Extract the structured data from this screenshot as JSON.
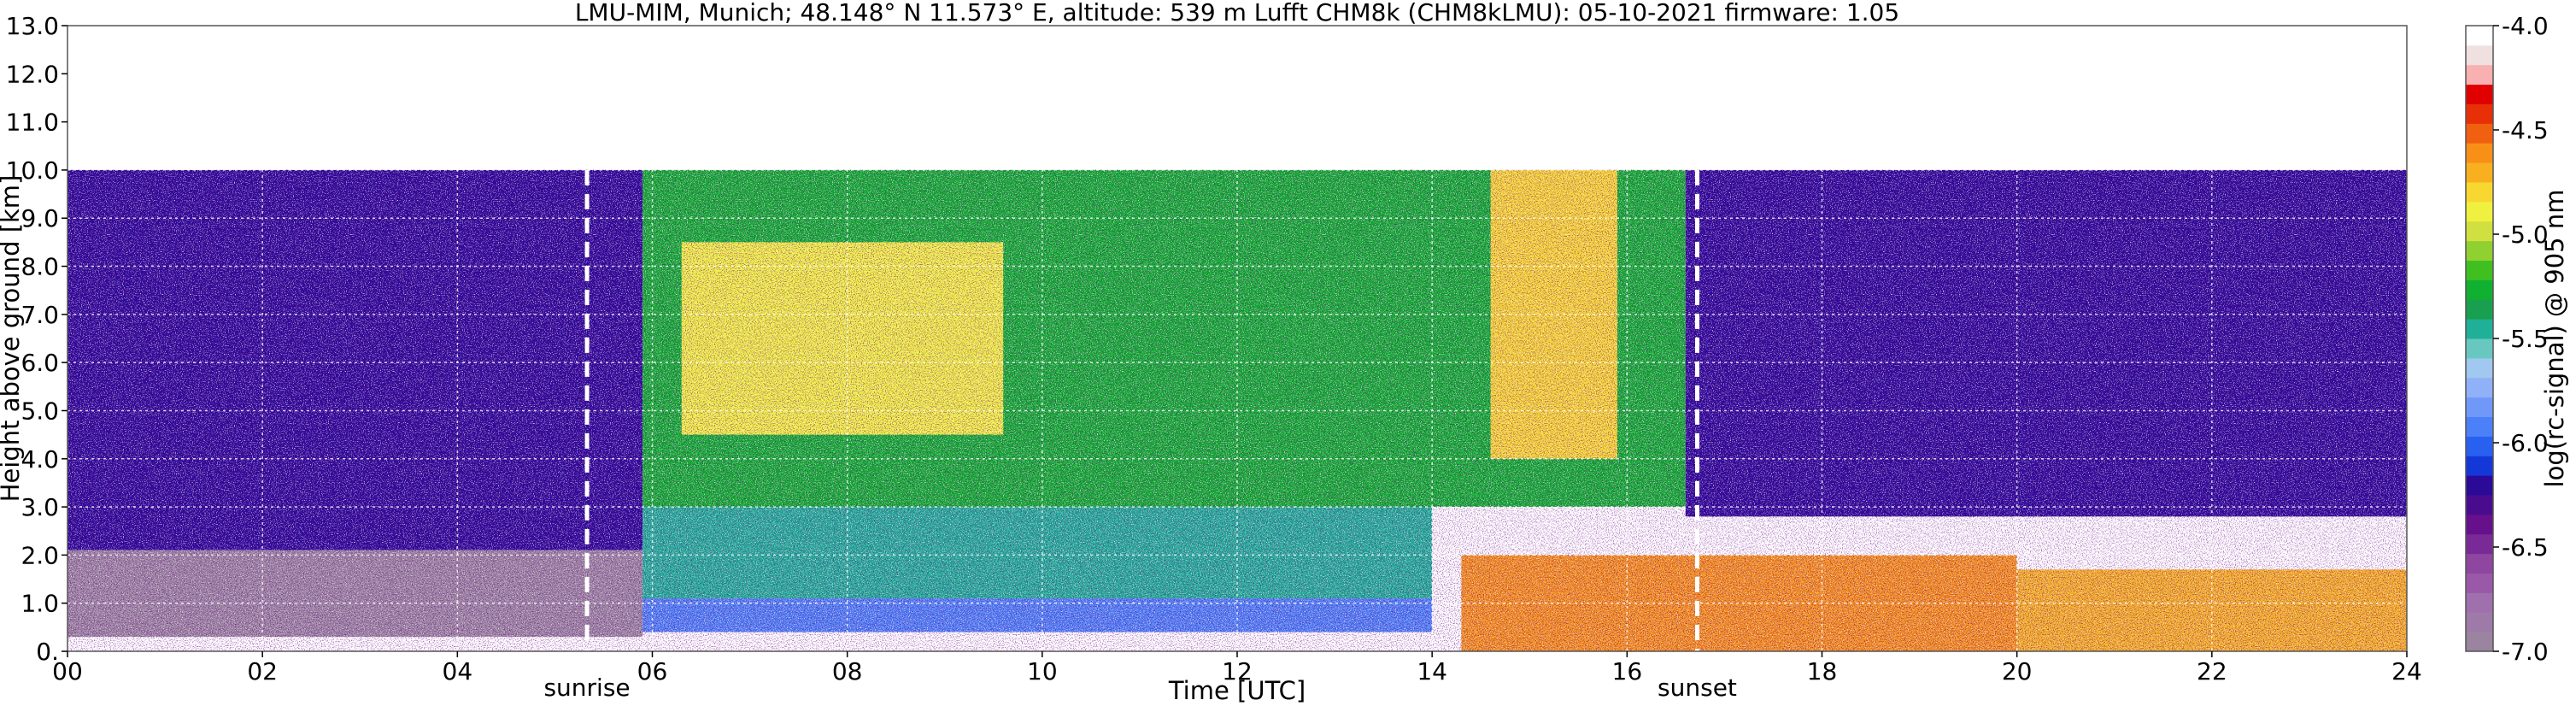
{
  "chart_data": {
    "type": "heatmap",
    "title": "LMU-MIM, Munich; 48.148° N 11.573° E, altitude: 539 m    Lufft CHM8k (CHM8kLMU): 05-10-2021    firmware: 1.05",
    "xlabel": "Time [UTC]",
    "ylabel": "Height above ground [km]",
    "colorbar_label": "log(rc-signal) @ 905 nm",
    "xlim": [
      0,
      24
    ],
    "ylim": [
      0,
      13
    ],
    "x_ticks": [
      0,
      2,
      4,
      6,
      8,
      10,
      12,
      14,
      16,
      18,
      20,
      22,
      24
    ],
    "x_tick_labels": [
      "00",
      "02",
      "04",
      "06",
      "08",
      "10",
      "12",
      "14",
      "16",
      "18",
      "20",
      "22",
      "24"
    ],
    "y_ticks": [
      0,
      1,
      2,
      3,
      4,
      5,
      6,
      7,
      8,
      9,
      10,
      11,
      12,
      13
    ],
    "y_tick_labels": [
      "0.",
      "1.0",
      "2.0",
      "3.0",
      "4.0",
      "5.0",
      "6.0",
      "7.0",
      "8.0",
      "9.0",
      "10.0",
      "11.0",
      "12.0",
      "13.0"
    ],
    "grid": true,
    "data_top_km": 10,
    "colorbar": {
      "range": [
        -7.0,
        -4.0
      ],
      "ticks": [
        -7.0,
        -6.5,
        -6.0,
        -5.5,
        -5.0,
        -4.5,
        -4.0
      ],
      "tick_labels": [
        "-7.0",
        "-6.5",
        "-6.0",
        "-5.5",
        "-5.0",
        "-4.5",
        "-4.0"
      ],
      "colors": [
        "#9a84a0",
        "#9e7aa8",
        "#a070ae",
        "#9a58a8",
        "#8e46a0",
        "#7a2a96",
        "#66108c",
        "#4a0c8e",
        "#2c0a98",
        "#1438d8",
        "#2860f0",
        "#4c80f8",
        "#7098f8",
        "#90b0f8",
        "#a0c8f0",
        "#68c8c0",
        "#20b098",
        "#18a050",
        "#10b030",
        "#40c020",
        "#90d030",
        "#d0e040",
        "#f0f040",
        "#f8d830",
        "#f8b020",
        "#f89018",
        "#f06010",
        "#e83008",
        "#e00000",
        "#f8b0b0",
        "#f0e0e0",
        "#ffffff"
      ]
    },
    "annotations": [
      {
        "text": "sunrise",
        "x": 5.33
      },
      {
        "text": "sunset",
        "x": 16.72
      }
    ],
    "events": {
      "sunrise_utc": 5.33,
      "sunset_utc": 16.72
    },
    "signal_regions": [
      {
        "x0": 0.0,
        "x1": 5.9,
        "y0": 2.1,
        "y1": 10.0,
        "level": -6.2
      },
      {
        "x0": 0.0,
        "x1": 5.9,
        "y0": 0.3,
        "y1": 2.1,
        "level": -7.0
      },
      {
        "x0": 5.9,
        "x1": 16.6,
        "y0": 3.0,
        "y1": 10.0,
        "level": -5.3
      },
      {
        "x0": 5.9,
        "x1": 14.0,
        "y0": 1.1,
        "y1": 3.0,
        "level": -5.5
      },
      {
        "x0": 5.9,
        "x1": 14.0,
        "y0": 0.4,
        "y1": 1.1,
        "level": -5.9
      },
      {
        "x0": 6.3,
        "x1": 9.6,
        "y0": 4.5,
        "y1": 8.5,
        "level": -4.9
      },
      {
        "x0": 14.6,
        "x1": 15.9,
        "y0": 4.0,
        "y1": 10.0,
        "level": -4.8
      },
      {
        "x0": 14.3,
        "x1": 20.0,
        "y0": 0.0,
        "y1": 2.0,
        "level": -4.6
      },
      {
        "x0": 20.0,
        "x1": 24.0,
        "y0": 0.0,
        "y1": 1.7,
        "level": -4.7
      },
      {
        "x0": 16.6,
        "x1": 24.0,
        "y0": 2.8,
        "y1": 10.0,
        "level": -6.2
      }
    ]
  }
}
